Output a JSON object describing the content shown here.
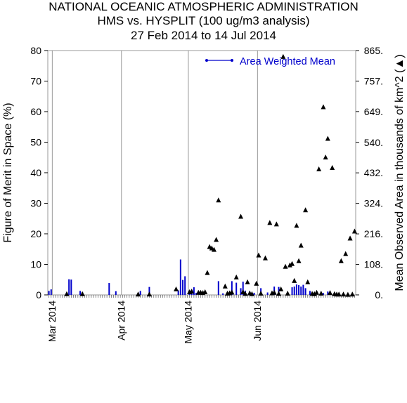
{
  "header": {
    "line1": "NATIONAL OCEANIC ATMOSPHERIC ADMINISTRATION",
    "line2": "HMS vs. HYSPLIT (100 ug/m3 analysis)",
    "line3": "27 Feb 2014 to 14 Jul 2014"
  },
  "chart_data": {
    "type": "bar",
    "title": "HMS vs. HYSPLIT (100 ug/m3 analysis)",
    "subtitle": "27 Feb 2014 to 14 Jul 2014",
    "x_range": [
      "2014-02-27",
      "2014-07-14"
    ],
    "month_ticks": [
      {
        "date": "2014-03-01",
        "label": "Mar 2014"
      },
      {
        "date": "2014-04-01",
        "label": "Apr 2014"
      },
      {
        "date": "2014-05-01",
        "label": "May 2014"
      },
      {
        "date": "2014-06-01",
        "label": "Jun 2014"
      }
    ],
    "y_left": {
      "label": "Figure of Merit in Space (%)",
      "range": [
        0,
        80
      ],
      "ticks": [
        "0",
        "10",
        "20",
        "30",
        "40",
        "50",
        "60",
        "70",
        "80"
      ]
    },
    "y_right": {
      "label": "Mean Observed Area in thousands of km^2 (▲)",
      "range": [
        0,
        865
      ],
      "ticks": [
        "0.",
        "108.",
        "216.",
        "324.",
        "432.",
        "540.",
        "649.",
        "757.",
        "865."
      ]
    },
    "legend": {
      "label": "Area Weighted Mean",
      "position": "top-right",
      "color": "#0000cc"
    },
    "grid": "vertical lines at month boundaries",
    "series": [
      {
        "name": "Area Weighted Mean",
        "type": "bar",
        "axis": "left",
        "color": "#0000cc",
        "x": [
          "2014-02-27",
          "2014-02-28",
          "2014-03-08",
          "2014-03-09",
          "2014-03-13",
          "2014-03-14",
          "2014-03-26",
          "2014-03-29",
          "2014-04-09",
          "2014-04-13",
          "2014-04-26",
          "2014-04-27",
          "2014-04-28",
          "2014-04-29",
          "2014-05-01",
          "2014-05-02",
          "2014-05-03",
          "2014-05-04",
          "2014-05-14",
          "2014-05-16",
          "2014-05-20",
          "2014-05-22",
          "2014-05-24",
          "2014-05-25",
          "2014-05-26",
          "2014-05-28",
          "2014-05-30",
          "2014-06-02",
          "2014-06-05",
          "2014-06-08",
          "2014-06-10",
          "2014-06-16",
          "2014-06-17",
          "2014-06-18",
          "2014-06-19",
          "2014-06-20",
          "2014-06-21",
          "2014-06-22",
          "2014-06-24",
          "2014-06-30",
          "2014-07-02"
        ],
        "values": [
          1.3,
          1.8,
          5.1,
          5.0,
          1.3,
          0.9,
          3.9,
          1.2,
          1.3,
          2.6,
          1.5,
          11.6,
          4.9,
          6.1,
          0.9,
          1.3,
          2.5,
          0.7,
          4.5,
          0.5,
          4.5,
          4.0,
          2.2,
          4.3,
          1.4,
          1.0,
          0.7,
          2.2,
          0.8,
          2.7,
          2.6,
          2.5,
          2.7,
          3.4,
          3.2,
          2.7,
          3.3,
          2.2,
          1.3,
          0.6,
          1.1
        ]
      },
      {
        "name": "Mean Observed Area",
        "type": "scatter",
        "marker": "triangle",
        "axis": "right",
        "color": "#000000",
        "x": [
          "2014-03-07",
          "2014-03-14",
          "2014-04-08",
          "2014-04-13",
          "2014-04-25",
          "2014-05-01",
          "2014-05-02",
          "2014-05-05",
          "2014-05-08",
          "2014-05-09",
          "2014-05-10",
          "2014-05-11",
          "2014-05-12",
          "2014-05-13",
          "2014-05-14",
          "2014-05-17",
          "2014-05-22",
          "2014-05-24",
          "2014-05-25",
          "2014-05-27",
          "2014-05-31",
          "2014-06-01",
          "2014-06-02",
          "2014-06-04",
          "2014-06-06",
          "2014-06-09",
          "2014-06-11",
          "2014-06-12",
          "2014-06-13",
          "2014-06-15",
          "2014-06-16",
          "2014-06-17",
          "2014-06-18",
          "2014-06-19",
          "2014-06-20",
          "2014-06-22",
          "2014-06-23",
          "2014-06-27",
          "2014-06-28",
          "2014-06-30",
          "2014-07-01",
          "2014-07-02",
          "2014-07-03",
          "2014-07-04",
          "2014-07-06",
          "2014-07-08",
          "2014-07-10",
          "2014-07-12",
          "2014-07-14",
          "2014-06-25",
          "2014-06-26",
          "2014-06-29",
          "2014-07-05",
          "2014-07-07",
          "2014-07-09",
          "2014-07-11",
          "2014-07-13",
          "2014-05-06",
          "2014-05-07",
          "2014-05-18",
          "2014-05-19",
          "2014-05-20",
          "2014-06-07",
          "2014-06-08",
          "2014-06-10",
          "2014-06-14",
          "2014-05-26",
          "2014-05-28",
          "2014-05-29"
        ],
        "values": [
          3,
          3,
          2,
          2,
          20,
          10,
          12,
          8,
          10,
          78,
          170,
          165,
          160,
          195,
          335,
          30,
          62,
          277,
          10,
          45,
          40,
          140,
          5,
          130,
          255,
          250,
          20,
          843,
          100,
          105,
          110,
          50,
          245,
          120,
          175,
          300,
          45,
          8,
          445,
          665,
          487,
          553,
          7,
          450,
          2,
          120,
          145,
          200,
          225,
          4,
          3,
          5,
          3,
          2,
          2,
          1,
          2,
          8,
          7,
          5,
          6,
          9,
          6,
          8,
          4,
          5,
          4,
          6,
          3
        ]
      }
    ]
  }
}
